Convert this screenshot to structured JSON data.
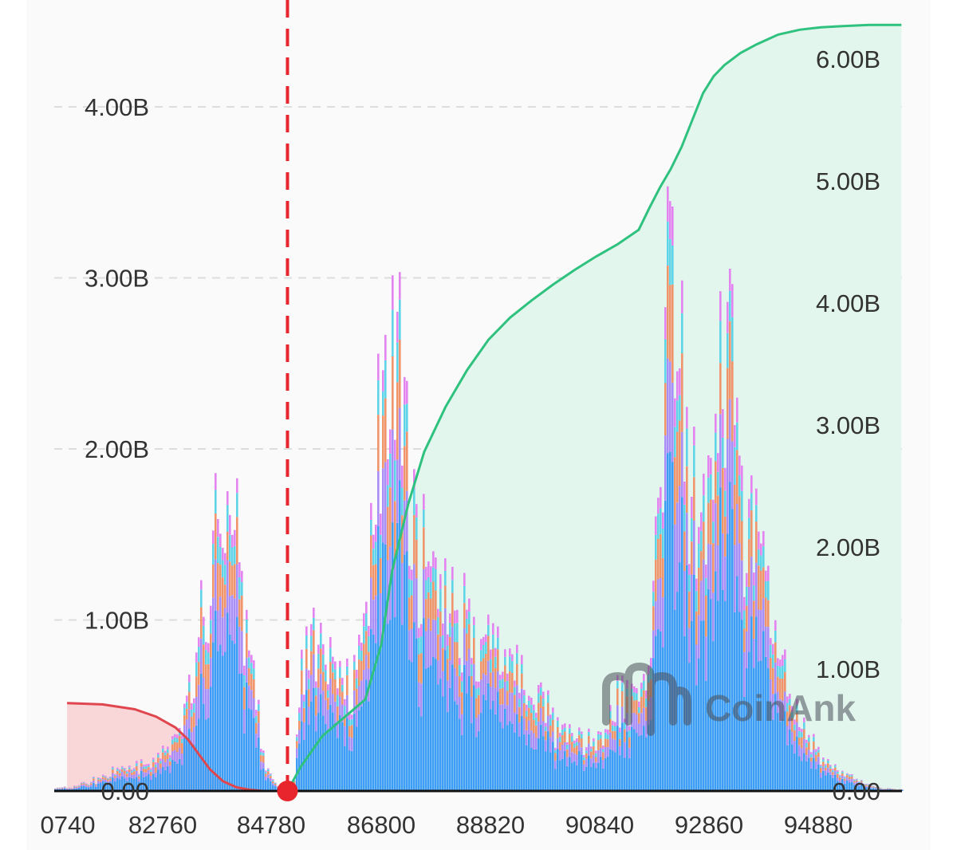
{
  "colors": {
    "background": "#fafafa",
    "gridline": "#dddddd",
    "short_cumulative_line": "#e0464e",
    "short_cumulative_fill": "#f9d6d8",
    "long_cumulative_line": "#2ec27e",
    "long_cumulative_fill": "#e3f6ee",
    "current_price_line": "#e8252d",
    "stack_layers": [
      "#3d9cf5",
      "#a98ef7",
      "#f0946c",
      "#5fd4e8",
      "#e384f1"
    ],
    "watermark": "#4a4f58"
  },
  "watermark": {
    "text": "CoinAnk",
    "icon": "coinank-logo-icon"
  },
  "current_price_marker": {
    "icon": "current-price-dot-icon"
  },
  "chart_data": {
    "type": "bar",
    "description_of_series_is_unprinted": true,
    "x_tick_labels": [
      "0740",
      "82760",
      "84780",
      "86800",
      "88820",
      "90840",
      "92860",
      "94880"
    ],
    "x_range": [
      80500,
      96310
    ],
    "current_price": 84850,
    "left_axis": {
      "tick_labels": [
        "0.00",
        "1.00B",
        "2.00B",
        "3.00B",
        "4.00B"
      ],
      "tick_values": [
        0,
        1.0,
        2.0,
        3.0,
        4.0
      ],
      "range": [
        0,
        4.6
      ],
      "unit": "B"
    },
    "right_axis": {
      "tick_labels": [
        "0.00",
        "1.00B",
        "2.00B",
        "3.00B",
        "4.00B",
        "5.00B",
        "6.00B"
      ],
      "tick_values": [
        0,
        1.0,
        2.0,
        3.0,
        4.0,
        5.0,
        6.0
      ],
      "range": [
        0,
        6.2
      ],
      "unit": "B"
    },
    "grid": true,
    "stacked_bar_profile": {
      "x": [
        80740,
        81200,
        81700,
        82100,
        82400,
        82600,
        82760,
        82900,
        83050,
        83250,
        83450,
        83650,
        83850,
        84050,
        84250,
        84450,
        84700,
        84850,
        84950,
        85100,
        85300,
        85500,
        85650,
        85800,
        86000,
        86150,
        86300,
        86450,
        86600,
        86800,
        87000,
        87200,
        87400,
        87600,
        87800,
        88000,
        88200,
        88400,
        88600,
        88800,
        89000,
        89200,
        89400,
        89600,
        89800,
        90000,
        90200,
        90400,
        90600,
        90840,
        91000,
        91200,
        91400,
        91600,
        91750,
        91850,
        91950,
        92050,
        92200,
        92350,
        92500,
        92650,
        92800,
        92950,
        93100,
        93200,
        93300,
        93450,
        93600,
        93800,
        94000,
        94200,
        94400,
        94600,
        94880,
        95100,
        95350,
        95600,
        95900,
        96200
      ],
      "total": [
        0.02,
        0.06,
        0.12,
        0.17,
        0.2,
        0.25,
        0.32,
        0.42,
        0.6,
        1.0,
        1.45,
        1.78,
        1.55,
        0.9,
        0.55,
        0.12,
        0.0,
        0.0,
        0.0,
        0.7,
        1.0,
        0.85,
        0.75,
        0.65,
        0.6,
        0.75,
        1.05,
        1.75,
        2.6,
        3.1,
        2.2,
        1.55,
        1.35,
        1.25,
        1.05,
        1.0,
        0.95,
        0.9,
        0.88,
        0.82,
        0.76,
        0.7,
        0.6,
        0.5,
        0.4,
        0.35,
        0.3,
        0.3,
        0.32,
        0.45,
        0.5,
        0.55,
        0.65,
        0.95,
        1.4,
        2.4,
        3.55,
        3.0,
        2.15,
        1.85,
        1.65,
        1.5,
        1.9,
        2.5,
        2.35,
        1.95,
        1.75,
        1.55,
        1.35,
        1.15,
        0.85,
        0.6,
        0.4,
        0.25,
        0.18,
        0.12,
        0.08,
        0.05,
        0.02,
        0.01
      ],
      "layer_shares": [
        0.55,
        0.17,
        0.14,
        0.08,
        0.06
      ]
    },
    "short_cumulative": {
      "x": [
        80740,
        81400,
        82000,
        82400,
        82760,
        83000,
        83200,
        83400,
        83650,
        83900,
        84150,
        84400,
        84600,
        84850
      ],
      "y": [
        0.72,
        0.71,
        0.67,
        0.61,
        0.52,
        0.42,
        0.3,
        0.18,
        0.08,
        0.03,
        0.01,
        0.0,
        0.0,
        0.0
      ]
    },
    "long_cumulative": {
      "x": [
        84850,
        85100,
        85500,
        85900,
        86300,
        86600,
        86800,
        87100,
        87400,
        87800,
        88200,
        88600,
        89000,
        89400,
        89800,
        90200,
        90600,
        91000,
        91400,
        91600,
        91800,
        92000,
        92200,
        92400,
        92600,
        92800,
        93000,
        93300,
        93600,
        94000,
        94400,
        94800,
        95200,
        95700,
        96300
      ],
      "y": [
        0.0,
        0.2,
        0.45,
        0.6,
        0.75,
        1.2,
        1.8,
        2.35,
        2.78,
        3.15,
        3.45,
        3.7,
        3.88,
        4.02,
        4.15,
        4.27,
        4.38,
        4.48,
        4.6,
        4.78,
        4.95,
        5.1,
        5.28,
        5.5,
        5.72,
        5.86,
        5.95,
        6.05,
        6.12,
        6.2,
        6.24,
        6.26,
        6.27,
        6.28,
        6.28
      ]
    }
  }
}
